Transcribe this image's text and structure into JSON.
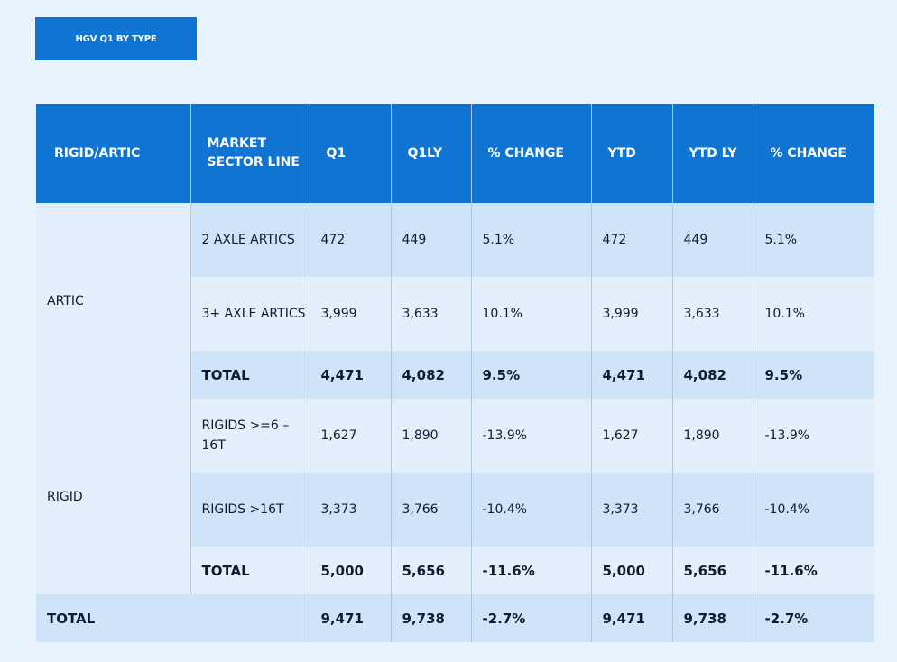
{
  "title": "HGV Q1 BY TYPE",
  "headers": {
    "rigid_artic": "RIGID/ARTIC",
    "market_sector_line": "MARKET SECTOR LINE",
    "q1": "Q1",
    "q1ly": "Q1LY",
    "pct_change_1": "% CHANGE",
    "ytd": "YTD",
    "ytd_ly": "YTD LY",
    "pct_change_2": "% CHANGE"
  },
  "groups": [
    {
      "label": "ARTIC",
      "rows": [
        {
          "line": "2 AXLE ARTICS",
          "q1": "472",
          "q1ly": "449",
          "pct1": "5.1%",
          "ytd": "472",
          "ytdly": "449",
          "pct2": "5.1%"
        },
        {
          "line": "3+ AXLE ARTICS",
          "q1": "3,999",
          "q1ly": "3,633",
          "pct1": "10.1%",
          "ytd": "3,999",
          "ytdly": "3,633",
          "pct2": "10.1%"
        },
        {
          "line": "TOTAL",
          "q1": "4,471",
          "q1ly": "4,082",
          "pct1": "9.5%",
          "ytd": "4,471",
          "ytdly": "4,082",
          "pct2": "9.5%"
        }
      ]
    },
    {
      "label": "RIGID",
      "rows": [
        {
          "line": "RIGIDS >=6 – 16T",
          "q1": "1,627",
          "q1ly": "1,890",
          "pct1": "-13.9%",
          "ytd": "1,627",
          "ytdly": "1,890",
          "pct2": "-13.9%"
        },
        {
          "line": "RIGIDS >16T",
          "q1": "3,373",
          "q1ly": "3,766",
          "pct1": "-10.4%",
          "ytd": "3,373",
          "ytdly": "3,766",
          "pct2": "-10.4%"
        },
        {
          "line": "TOTAL",
          "q1": "5,000",
          "q1ly": "5,656",
          "pct1": "-11.6%",
          "ytd": "5,000",
          "ytdly": "5,656",
          "pct2": "-11.6%"
        }
      ]
    }
  ],
  "grand_total": {
    "label": "TOTAL",
    "q1": "9,471",
    "q1ly": "9,738",
    "pct1": "-2.7%",
    "ytd": "9,471",
    "ytdly": "9,738",
    "pct2": "-2.7%"
  }
}
